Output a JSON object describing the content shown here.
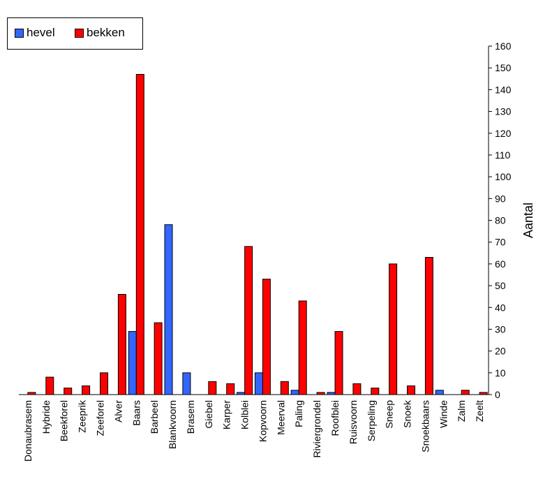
{
  "chart_data": {
    "type": "bar",
    "categories": [
      "Donaubrasem",
      "Hybride",
      "Beekforel",
      "Zeeprik",
      "Zeeforel",
      "Alver",
      "Baars",
      "Barbeel",
      "Blankvoorn",
      "Brasem",
      "Giebel",
      "Karper",
      "Kolblei",
      "Kopvoorn",
      "Meerval",
      "Paling",
      "Riviergrondel",
      "Roofblei",
      "Ruisvoorn",
      "Serpeling",
      "Sneep",
      "Snoek",
      "Snoekbaars",
      "Winde",
      "Zalm",
      "Zeelt"
    ],
    "series": [
      {
        "name": "hevel",
        "color": "#3366ff",
        "values": [
          0,
          0,
          0,
          0,
          0,
          0,
          29,
          0,
          78,
          10,
          0,
          0,
          1,
          10,
          0,
          2,
          0,
          1,
          0,
          0,
          0,
          0,
          0,
          2,
          0,
          0
        ]
      },
      {
        "name": "bekken",
        "color": "#ff0000",
        "values": [
          1,
          8,
          3,
          4,
          10,
          46,
          147,
          33,
          0,
          0,
          6,
          5,
          68,
          53,
          6,
          43,
          1,
          29,
          5,
          3,
          60,
          4,
          63,
          0,
          2,
          1
        ]
      }
    ],
    "ylabel": "Aantal",
    "ylim": [
      0,
      160
    ],
    "yticks": [
      0,
      10,
      20,
      30,
      40,
      50,
      60,
      70,
      80,
      90,
      100,
      110,
      120,
      130,
      140,
      150,
      160
    ],
    "y_axis_side": "right",
    "legend_position": "top-left",
    "grid": false
  }
}
